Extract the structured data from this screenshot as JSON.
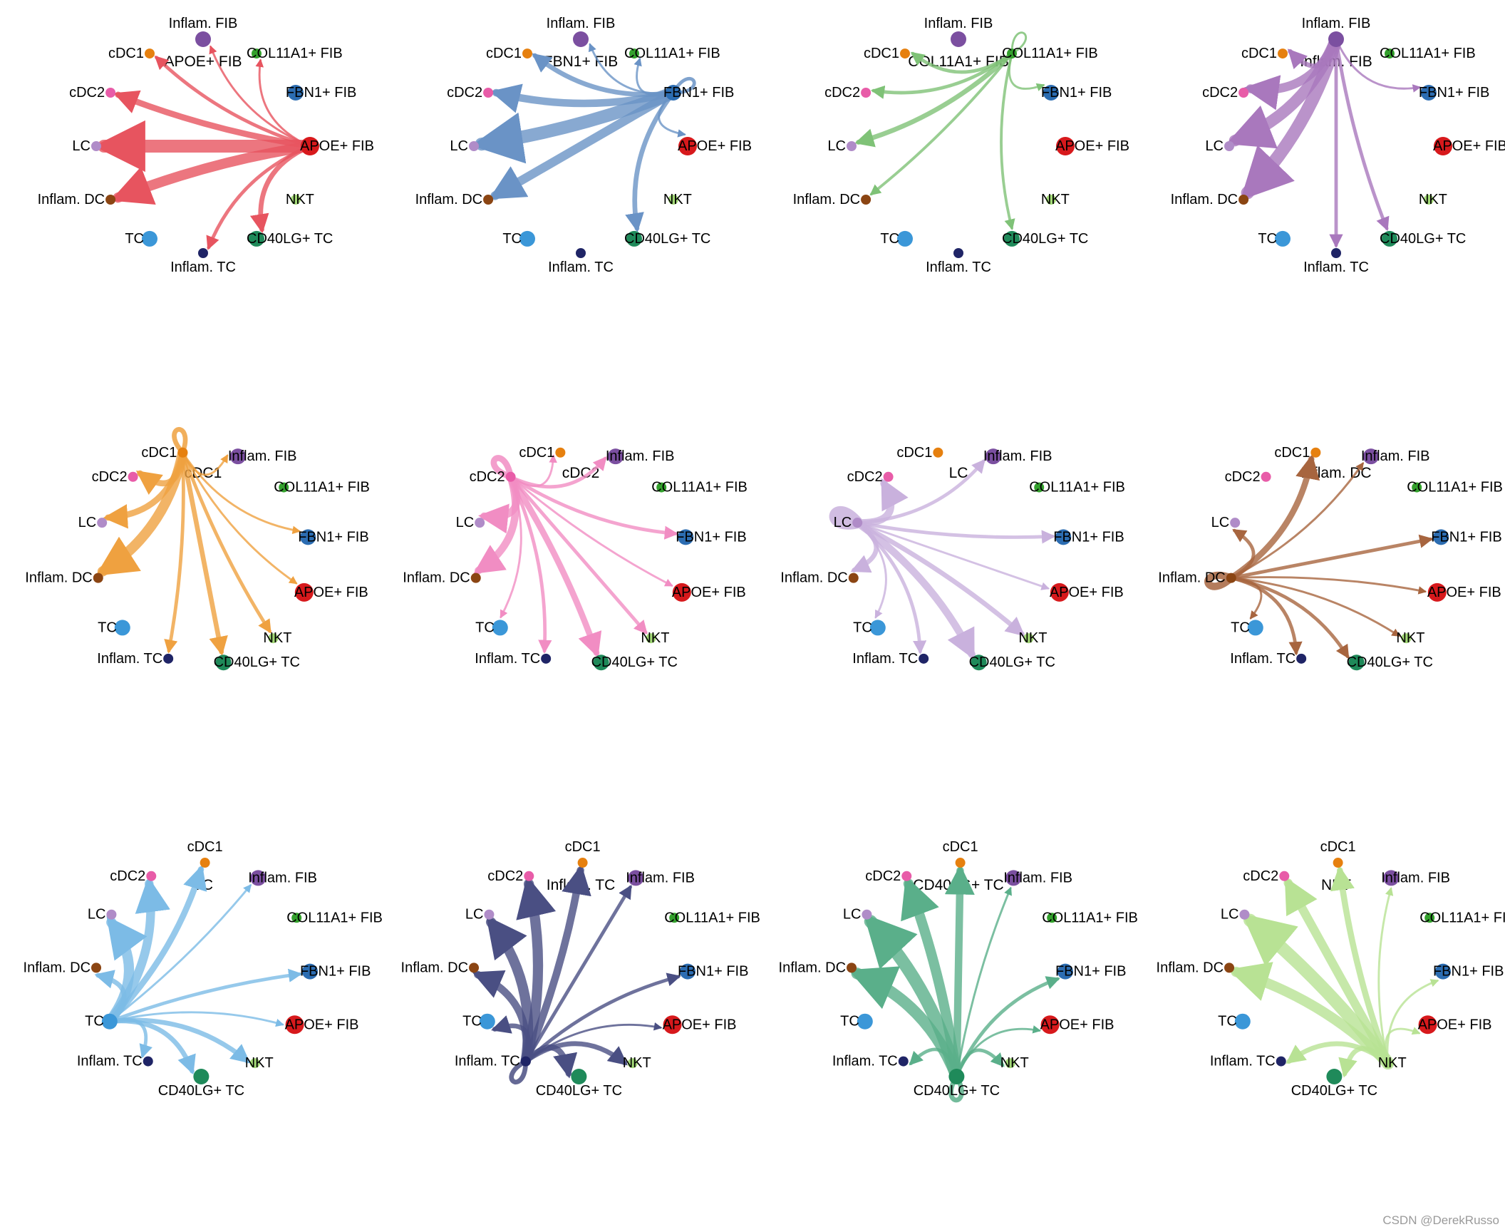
{
  "cell_types": [
    {
      "label": "APOE+ FIB",
      "color": "#d7191c",
      "node_size": 3
    },
    {
      "label": "FBN1+ FIB",
      "color": "#2c6db2",
      "node_size": 2
    },
    {
      "label": "COL11A1+ FIB",
      "color": "#33a02c",
      "node_size": 1
    },
    {
      "label": "Inflam. FIB",
      "color": "#7b4fa0",
      "node_size": 2
    },
    {
      "label": "cDC1",
      "color": "#e6800f",
      "node_size": 1
    },
    {
      "label": "cDC2",
      "color": "#e85ca8",
      "node_size": 1
    },
    {
      "label": "LC",
      "color": "#b08cc8",
      "node_size": 1
    },
    {
      "label": "Inflam. DC",
      "color": "#8b4513",
      "node_size": 1
    },
    {
      "label": "TC",
      "color": "#3b97d8",
      "node_size": 2
    },
    {
      "label": "Inflam. TC",
      "color": "#1f2466",
      "node_size": 1
    },
    {
      "label": "CD40LG+ TC",
      "color": "#1f8a5a",
      "node_size": 2
    },
    {
      "label": "NKT",
      "color": "#a3d977",
      "node_size": 1
    }
  ],
  "edge_colors": [
    "#e7545f",
    "#6a93c6",
    "#7fc277",
    "#a978bd",
    "#efa140",
    "#f18dc3",
    "#c9b1dd",
    "#a7653f",
    "#7cbbe6",
    "#4a4f83",
    "#5aaf8a",
    "#b8e294"
  ],
  "panels": [
    {
      "title": "APOE+ FIB",
      "source": 0,
      "edges": [
        [
          4,
          2
        ],
        [
          5,
          4
        ],
        [
          6,
          9
        ],
        [
          7,
          7
        ],
        [
          9,
          2
        ],
        [
          10,
          3
        ],
        [
          3,
          1
        ],
        [
          2,
          1
        ]
      ]
    },
    {
      "title": "FBN1+ FIB",
      "source": 1,
      "edges": [
        [
          4,
          3
        ],
        [
          5,
          5
        ],
        [
          6,
          9
        ],
        [
          7,
          6
        ],
        [
          10,
          3
        ],
        [
          3,
          1
        ],
        [
          2,
          1
        ],
        [
          1,
          2
        ],
        [
          0,
          1
        ]
      ]
    },
    {
      "title": "COL11A1+ FIB",
      "source": 2,
      "edges": [
        [
          4,
          2
        ],
        [
          5,
          2
        ],
        [
          6,
          3
        ],
        [
          7,
          1.5
        ],
        [
          1,
          1
        ],
        [
          10,
          1.5
        ],
        [
          2,
          1
        ]
      ]
    },
    {
      "title": "Inflam. FIB",
      "source": 3,
      "edges": [
        [
          4,
          3
        ],
        [
          5,
          6
        ],
        [
          6,
          8
        ],
        [
          7,
          9
        ],
        [
          9,
          2
        ],
        [
          10,
          2
        ],
        [
          1,
          1
        ]
      ]
    },
    {
      "title": "cDC1",
      "source": 4,
      "edges": [
        [
          4,
          3
        ],
        [
          5,
          4
        ],
        [
          6,
          4
        ],
        [
          7,
          7
        ],
        [
          3,
          1
        ],
        [
          1,
          1
        ],
        [
          0,
          1
        ],
        [
          11,
          2
        ],
        [
          10,
          3
        ],
        [
          9,
          2
        ]
      ]
    },
    {
      "title": "cDC2",
      "source": 5,
      "edges": [
        [
          5,
          4
        ],
        [
          4,
          1
        ],
        [
          3,
          2
        ],
        [
          6,
          5
        ],
        [
          7,
          5
        ],
        [
          1,
          2
        ],
        [
          0,
          1
        ],
        [
          11,
          2
        ],
        [
          10,
          4
        ],
        [
          9,
          2
        ],
        [
          8,
          1
        ]
      ]
    },
    {
      "title": "LC",
      "source": 6,
      "edges": [
        [
          6,
          8
        ],
        [
          3,
          2
        ],
        [
          5,
          5
        ],
        [
          7,
          3
        ],
        [
          1,
          2
        ],
        [
          0,
          1
        ],
        [
          11,
          3
        ],
        [
          10,
          5
        ],
        [
          9,
          2
        ],
        [
          8,
          1
        ]
      ]
    },
    {
      "title": "Inflam. DC",
      "source": 7,
      "edges": [
        [
          7,
          5
        ],
        [
          4,
          4
        ],
        [
          3,
          1
        ],
        [
          6,
          2
        ],
        [
          1,
          2
        ],
        [
          0,
          1
        ],
        [
          11,
          1
        ],
        [
          10,
          2
        ],
        [
          9,
          2
        ],
        [
          8,
          1
        ]
      ]
    },
    {
      "title": "TC",
      "source": 8,
      "edges": [
        [
          4,
          4
        ],
        [
          3,
          1
        ],
        [
          5,
          6
        ],
        [
          6,
          7
        ],
        [
          7,
          3
        ],
        [
          1,
          2
        ],
        [
          0,
          1
        ],
        [
          11,
          3
        ],
        [
          10,
          3
        ],
        [
          9,
          2
        ]
      ]
    },
    {
      "title": "Inflam. TC",
      "source": 9,
      "edges": [
        [
          9,
          3
        ],
        [
          4,
          5
        ],
        [
          3,
          2
        ],
        [
          5,
          7
        ],
        [
          6,
          7
        ],
        [
          7,
          5
        ],
        [
          1,
          2
        ],
        [
          0,
          1
        ],
        [
          11,
          3
        ],
        [
          10,
          4
        ],
        [
          8,
          3
        ]
      ]
    },
    {
      "title": "CD40LG+ TC",
      "source": 10,
      "edges": [
        [
          10,
          3
        ],
        [
          4,
          5
        ],
        [
          3,
          1
        ],
        [
          5,
          7
        ],
        [
          6,
          9
        ],
        [
          7,
          8
        ],
        [
          1,
          2
        ],
        [
          0,
          1
        ],
        [
          11,
          2
        ],
        [
          9,
          2
        ]
      ]
    },
    {
      "title": "NKT",
      "source": 11,
      "edges": [
        [
          4,
          4
        ],
        [
          3,
          1
        ],
        [
          5,
          6
        ],
        [
          6,
          9
        ],
        [
          7,
          7
        ],
        [
          1,
          1
        ],
        [
          0,
          1
        ],
        [
          10,
          3
        ],
        [
          9,
          3
        ]
      ]
    }
  ],
  "watermark": "CSDN @DerekRusso"
}
